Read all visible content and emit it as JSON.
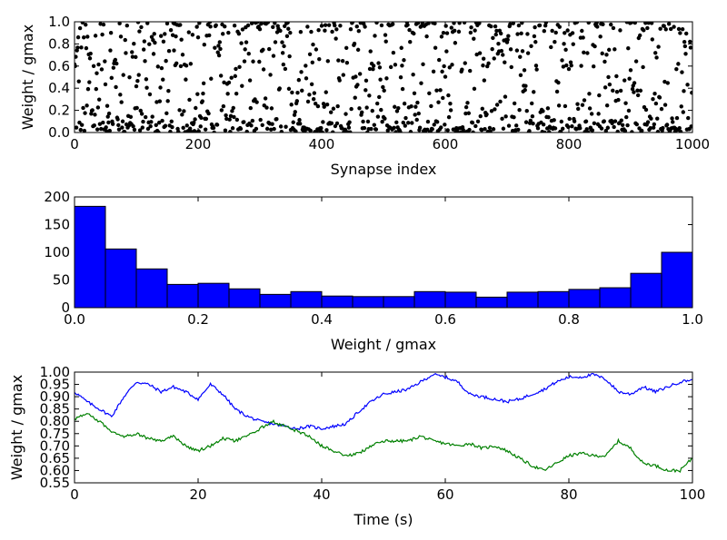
{
  "chart_data": [
    {
      "type": "scatter",
      "xlabel": "Synapse index",
      "ylabel": "Weight / gmax",
      "xlim": [
        0,
        1000
      ],
      "ylim": [
        0,
        1
      ],
      "xticks": [
        "0",
        "200",
        "400",
        "600",
        "800",
        "1000"
      ],
      "yticks": [
        "0.0",
        "0.2",
        "0.4",
        "0.6",
        "0.8",
        "1.0"
      ],
      "marker_color": "#000000",
      "n_points": 1000,
      "distribution": "bimodal, concentrated near 0 and near 1 (matches histogram below)"
    },
    {
      "type": "bar",
      "xlabel": "Weight / gmax",
      "ylabel": "",
      "xlim": [
        0,
        1
      ],
      "ylim": [
        0,
        200
      ],
      "xticks": [
        "0.0",
        "0.2",
        "0.4",
        "0.6",
        "0.8",
        "1.0"
      ],
      "yticks": [
        "0",
        "50",
        "100",
        "150",
        "200"
      ],
      "bin_width": 0.05,
      "bin_start": 0,
      "values": [
        183,
        106,
        70,
        42,
        44,
        34,
        24,
        29,
        21,
        20,
        20,
        29,
        28,
        19,
        28,
        29,
        33,
        36,
        62,
        100
      ],
      "color": "#0000ff"
    },
    {
      "type": "line",
      "xlabel": "Time (s)",
      "ylabel": "Weight / gmax",
      "xlim": [
        0,
        100
      ],
      "ylim": [
        0.55,
        1.0
      ],
      "xticks": [
        "0",
        "20",
        "40",
        "60",
        "80",
        "100"
      ],
      "yticks": [
        "0.55",
        "0.60",
        "0.65",
        "0.70",
        "0.75",
        "0.80",
        "0.85",
        "0.90",
        "0.95",
        "1.00"
      ],
      "series": [
        {
          "color": "#0000ff",
          "x": [
            0,
            2,
            4,
            6,
            8,
            10,
            12,
            14,
            16,
            18,
            20,
            22,
            24,
            26,
            28,
            30,
            32,
            34,
            36,
            38,
            40,
            42,
            44,
            46,
            48,
            50,
            52,
            54,
            56,
            58,
            60,
            62,
            64,
            66,
            68,
            70,
            72,
            74,
            76,
            78,
            80,
            82,
            84,
            86,
            88,
            90,
            92,
            94,
            96,
            98,
            100
          ],
          "y": [
            0.92,
            0.88,
            0.85,
            0.82,
            0.9,
            0.96,
            0.95,
            0.92,
            0.94,
            0.92,
            0.89,
            0.95,
            0.91,
            0.85,
            0.82,
            0.8,
            0.79,
            0.78,
            0.77,
            0.78,
            0.77,
            0.78,
            0.79,
            0.84,
            0.88,
            0.91,
            0.92,
            0.93,
            0.96,
            0.99,
            0.98,
            0.96,
            0.91,
            0.9,
            0.89,
            0.88,
            0.89,
            0.91,
            0.93,
            0.96,
            0.98,
            0.98,
            0.99,
            0.97,
            0.92,
            0.91,
            0.94,
            0.92,
            0.94,
            0.96,
            0.97
          ]
        },
        {
          "color": "#008000",
          "x": [
            0,
            2,
            4,
            6,
            8,
            10,
            12,
            14,
            16,
            18,
            20,
            22,
            24,
            26,
            28,
            30,
            32,
            34,
            36,
            38,
            40,
            42,
            44,
            46,
            48,
            50,
            52,
            54,
            56,
            58,
            60,
            62,
            64,
            66,
            68,
            70,
            72,
            74,
            76,
            78,
            80,
            82,
            84,
            86,
            88,
            90,
            92,
            94,
            96,
            98,
            100
          ],
          "y": [
            0.81,
            0.83,
            0.8,
            0.76,
            0.74,
            0.75,
            0.73,
            0.72,
            0.74,
            0.7,
            0.68,
            0.7,
            0.73,
            0.72,
            0.74,
            0.77,
            0.8,
            0.78,
            0.76,
            0.74,
            0.7,
            0.68,
            0.66,
            0.67,
            0.7,
            0.72,
            0.72,
            0.72,
            0.74,
            0.72,
            0.71,
            0.7,
            0.71,
            0.69,
            0.7,
            0.68,
            0.65,
            0.62,
            0.6,
            0.63,
            0.66,
            0.67,
            0.66,
            0.66,
            0.72,
            0.69,
            0.63,
            0.62,
            0.6,
            0.6,
            0.65
          ]
        }
      ]
    }
  ]
}
